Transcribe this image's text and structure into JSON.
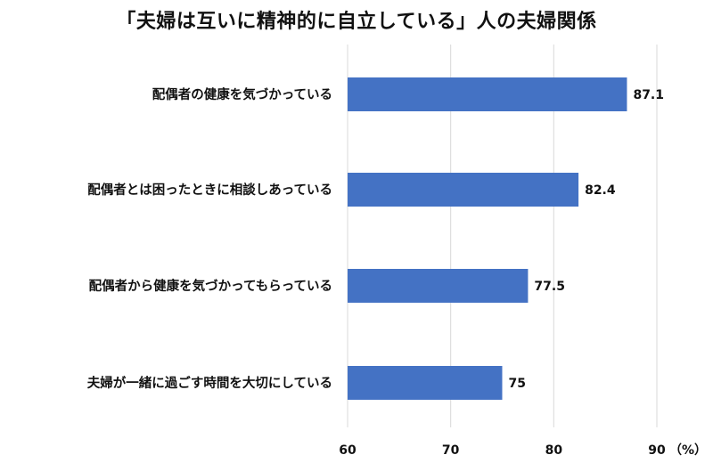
{
  "chart_data": {
    "type": "bar",
    "orientation": "horizontal",
    "title": "「夫婦は互いに精神的に自立している」人の夫婦関係",
    "categories": [
      "配偶者の健康を気づかっている",
      "配偶者とは困ったときに相談しあっている",
      "配偶者から健康を気づかってもらっている",
      "夫婦が一緒に過ごす時間を大切にしている"
    ],
    "values": [
      87.1,
      82.4,
      77.5,
      75
    ],
    "value_labels": [
      "87.1",
      "82.4",
      "77.5",
      "75"
    ],
    "xlim": [
      60,
      90
    ],
    "x_ticks": [
      60,
      70,
      80,
      90
    ],
    "x_tick_labels": [
      "60",
      "70",
      "80",
      "90"
    ],
    "x_unit": "（%）",
    "grid": true,
    "legend": "none",
    "bar_color": "#4472c4"
  }
}
